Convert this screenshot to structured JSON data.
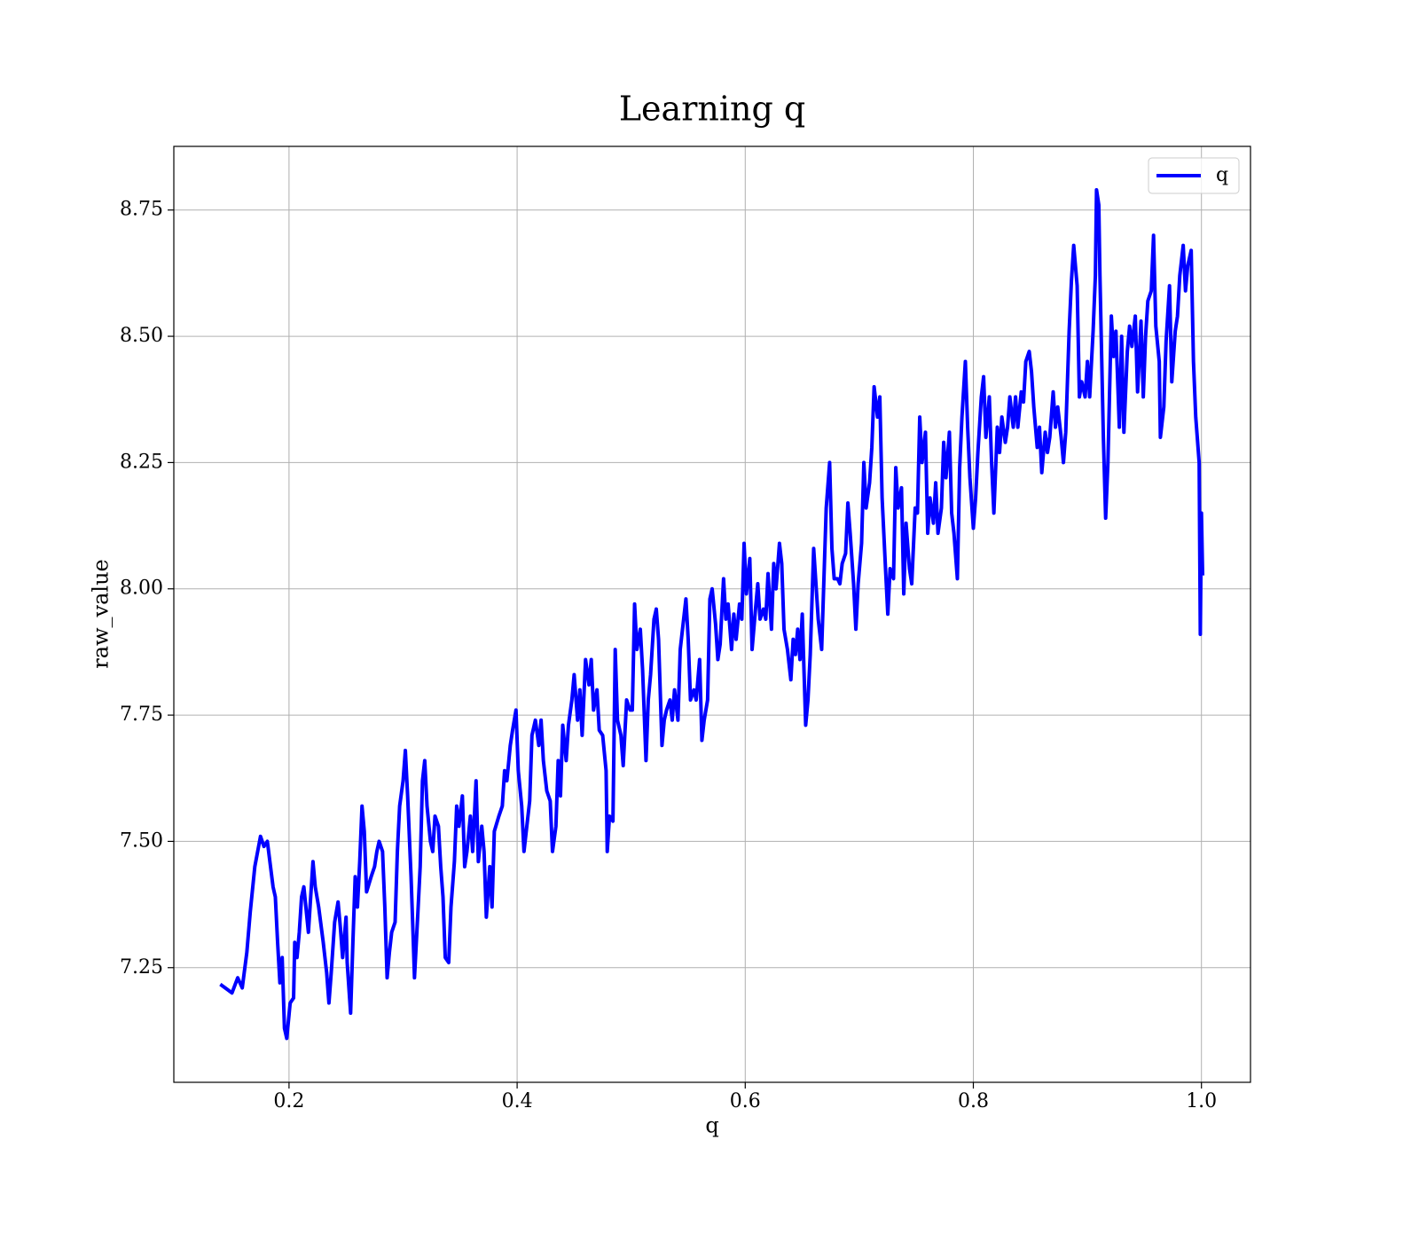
{
  "chart_data": {
    "type": "line",
    "title": "Learning q",
    "xlabel": "q",
    "ylabel": "raw_value",
    "xlim": [
      0.099,
      1.043
    ],
    "ylim": [
      7.023,
      8.876
    ],
    "xticks": [
      0.2,
      0.4,
      0.6,
      0.8,
      {
        "value": 1,
        "label": "1.0"
      }
    ],
    "yticks": [
      7.25,
      {
        "value": 7.5,
        "label": "7.50"
      },
      7.75,
      {
        "value": 8,
        "label": "8.00"
      },
      8.25,
      {
        "value": 8.5,
        "label": "8.50"
      },
      8.75
    ],
    "grid": true,
    "legend": "upper right",
    "series": [
      {
        "name": "q",
        "color": "#0000ff",
        "x": [
          0.141,
          0.15,
          0.155,
          0.159,
          0.163,
          0.166,
          0.17,
          0.175,
          0.178,
          0.181,
          0.186,
          0.188,
          0.19,
          0.192,
          0.194,
          0.196,
          0.198,
          0.201,
          0.204,
          0.205,
          0.207,
          0.209,
          0.211,
          0.213,
          0.217,
          0.219,
          0.221,
          0.223,
          0.226,
          0.23,
          0.231,
          0.233,
          0.235,
          0.237,
          0.24,
          0.243,
          0.245,
          0.247,
          0.25,
          0.251,
          0.254,
          0.256,
          0.258,
          0.26,
          0.262,
          0.264,
          0.266,
          0.268,
          0.272,
          0.275,
          0.277,
          0.279,
          0.282,
          0.284,
          0.286,
          0.288,
          0.29,
          0.293,
          0.295,
          0.297,
          0.3,
          0.302,
          0.304,
          0.307,
          0.309,
          0.31,
          0.313,
          0.315,
          0.317,
          0.319,
          0.321,
          0.324,
          0.326,
          0.328,
          0.331,
          0.333,
          0.335,
          0.337,
          0.34,
          0.342,
          0.345,
          0.347,
          0.349,
          0.352,
          0.354,
          0.356,
          0.359,
          0.361,
          0.364,
          0.366,
          0.369,
          0.371,
          0.373,
          0.376,
          0.378,
          0.38,
          0.384,
          0.387,
          0.389,
          0.391,
          0.394,
          0.396,
          0.399,
          0.401,
          0.404,
          0.406,
          0.408,
          0.411,
          0.413,
          0.416,
          0.419,
          0.421,
          0.423,
          0.426,
          0.429,
          0.431,
          0.434,
          0.436,
          0.438,
          0.44,
          0.443,
          0.445,
          0.448,
          0.45,
          0.453,
          0.455,
          0.457,
          0.46,
          0.463,
          0.465,
          0.467,
          0.47,
          0.472,
          0.475,
          0.478,
          0.479,
          0.481,
          0.484,
          0.486,
          0.488,
          0.491,
          0.493,
          0.496,
          0.499,
          0.501,
          0.503,
          0.505,
          0.508,
          0.51,
          0.513,
          0.515,
          0.517,
          0.52,
          0.522,
          0.524,
          0.527,
          0.529,
          0.531,
          0.534,
          0.536,
          0.538,
          0.541,
          0.543,
          0.545,
          0.548,
          0.55,
          0.552,
          0.555,
          0.557,
          0.56,
          0.562,
          0.564,
          0.567,
          0.569,
          0.571,
          0.574,
          0.576,
          0.578,
          0.581,
          0.583,
          0.585,
          0.588,
          0.59,
          0.592,
          0.595,
          0.597,
          0.599,
          0.601,
          0.604,
          0.606,
          0.609,
          0.611,
          0.613,
          0.616,
          0.618,
          0.62,
          0.623,
          0.625,
          0.627,
          0.63,
          0.632,
          0.634,
          0.637,
          0.64,
          0.642,
          0.644,
          0.646,
          0.648,
          0.65,
          0.653,
          0.655,
          0.657,
          0.66,
          0.662,
          0.664,
          0.667,
          0.669,
          0.671,
          0.674,
          0.676,
          0.678,
          0.681,
          0.683,
          0.685,
          0.688,
          0.69,
          0.692,
          0.695,
          0.697,
          0.699,
          0.702,
          0.704,
          0.706,
          0.709,
          0.711,
          0.713,
          0.716,
          0.718,
          0.72,
          0.723,
          0.725,
          0.727,
          0.73,
          0.732,
          0.734,
          0.737,
          0.739,
          0.741,
          0.744,
          0.746,
          0.749,
          0.751,
          0.753,
          0.755,
          0.758,
          0.76,
          0.762,
          0.765,
          0.767,
          0.769,
          0.772,
          0.774,
          0.776,
          0.779,
          0.781,
          0.783,
          0.786,
          0.788,
          0.79,
          0.793,
          0.795,
          0.797,
          0.8,
          0.802,
          0.804,
          0.807,
          0.809,
          0.811,
          0.814,
          0.816,
          0.818,
          0.821,
          0.823,
          0.825,
          0.828,
          0.83,
          0.832,
          0.835,
          0.837,
          0.839,
          0.842,
          0.844,
          0.846,
          0.849,
          0.851,
          0.853,
          0.856,
          0.858,
          0.86,
          0.863,
          0.865,
          0.867,
          0.87,
          0.872,
          0.874,
          0.877,
          0.879,
          0.881,
          0.884,
          0.886,
          0.888,
          0.891,
          0.893,
          0.895,
          0.898,
          0.9,
          0.902,
          0.905,
          0.907,
          0.908,
          0.91,
          0.911,
          0.914,
          0.916,
          0.918,
          0.921,
          0.923,
          0.925,
          0.928,
          0.93,
          0.932,
          0.935,
          0.937,
          0.939,
          0.942,
          0.944,
          0.947,
          0.949,
          0.951,
          0.953,
          0.956,
          0.958,
          0.96,
          0.963,
          0.964,
          0.967,
          0.969,
          0.972,
          0.974,
          0.977,
          0.979,
          0.981,
          0.984,
          0.986,
          0.988,
          0.991,
          0.993,
          0.995,
          0.998,
          0.999,
          1.0,
          1.001
        ],
        "values": [
          7.215,
          7.2,
          7.23,
          7.21,
          7.28,
          7.36,
          7.45,
          7.51,
          7.49,
          7.5,
          7.41,
          7.39,
          7.3,
          7.22,
          7.27,
          7.13,
          7.11,
          7.18,
          7.19,
          7.3,
          7.27,
          7.32,
          7.39,
          7.41,
          7.32,
          7.39,
          7.46,
          7.41,
          7.37,
          7.3,
          7.28,
          7.24,
          7.18,
          7.24,
          7.34,
          7.38,
          7.33,
          7.27,
          7.35,
          7.26,
          7.16,
          7.3,
          7.43,
          7.37,
          7.46,
          7.57,
          7.52,
          7.4,
          7.43,
          7.45,
          7.48,
          7.5,
          7.48,
          7.37,
          7.23,
          7.28,
          7.32,
          7.34,
          7.48,
          7.57,
          7.62,
          7.68,
          7.59,
          7.43,
          7.3,
          7.23,
          7.36,
          7.45,
          7.62,
          7.66,
          7.57,
          7.5,
          7.48,
          7.55,
          7.53,
          7.45,
          7.39,
          7.27,
          7.26,
          7.37,
          7.46,
          7.57,
          7.53,
          7.59,
          7.45,
          7.48,
          7.55,
          7.48,
          7.62,
          7.46,
          7.53,
          7.48,
          7.35,
          7.45,
          7.37,
          7.52,
          7.55,
          7.57,
          7.64,
          7.62,
          7.69,
          7.72,
          7.76,
          7.64,
          7.57,
          7.48,
          7.52,
          7.58,
          7.71,
          7.74,
          7.69,
          7.74,
          7.66,
          7.6,
          7.58,
          7.48,
          7.53,
          7.66,
          7.59,
          7.73,
          7.66,
          7.73,
          7.78,
          7.83,
          7.74,
          7.8,
          7.71,
          7.86,
          7.81,
          7.86,
          7.76,
          7.8,
          7.72,
          7.71,
          7.64,
          7.48,
          7.55,
          7.54,
          7.88,
          7.74,
          7.71,
          7.65,
          7.78,
          7.76,
          7.76,
          7.97,
          7.88,
          7.92,
          7.84,
          7.66,
          7.78,
          7.83,
          7.94,
          7.96,
          7.9,
          7.69,
          7.74,
          7.76,
          7.78,
          7.74,
          7.8,
          7.74,
          7.88,
          7.92,
          7.98,
          7.9,
          7.78,
          7.8,
          7.78,
          7.86,
          7.7,
          7.74,
          7.78,
          7.98,
          8.0,
          7.93,
          7.86,
          7.89,
          8.02,
          7.94,
          7.97,
          7.88,
          7.95,
          7.9,
          7.97,
          7.94,
          8.09,
          7.99,
          8.06,
          7.88,
          7.96,
          8.01,
          7.94,
          7.96,
          7.94,
          8.03,
          7.92,
          8.05,
          8.0,
          8.09,
          8.05,
          7.92,
          7.88,
          7.82,
          7.9,
          7.87,
          7.92,
          7.86,
          7.95,
          7.73,
          7.78,
          7.87,
          8.08,
          8.01,
          7.94,
          7.88,
          8.02,
          8.16,
          8.25,
          8.08,
          8.02,
          8.02,
          8.01,
          8.05,
          8.07,
          8.17,
          8.11,
          8.01,
          7.92,
          8.01,
          8.09,
          8.25,
          8.16,
          8.21,
          8.28,
          8.4,
          8.34,
          8.38,
          8.18,
          8.04,
          7.95,
          8.04,
          8.02,
          8.24,
          8.16,
          8.2,
          7.99,
          8.13,
          8.04,
          8.01,
          8.16,
          8.15,
          8.34,
          8.25,
          8.31,
          8.11,
          8.18,
          8.13,
          8.21,
          8.11,
          8.16,
          8.29,
          8.22,
          8.31,
          8.15,
          8.11,
          8.02,
          8.24,
          8.34,
          8.45,
          8.32,
          8.22,
          8.12,
          8.18,
          8.27,
          8.38,
          8.42,
          8.3,
          8.38,
          8.25,
          8.15,
          8.32,
          8.27,
          8.34,
          8.29,
          8.32,
          8.38,
          8.32,
          8.38,
          8.32,
          8.39,
          8.37,
          8.45,
          8.47,
          8.43,
          8.36,
          8.28,
          8.32,
          8.23,
          8.31,
          8.27,
          8.3,
          8.39,
          8.32,
          8.36,
          8.3,
          8.25,
          8.31,
          8.51,
          8.61,
          8.68,
          8.6,
          8.38,
          8.41,
          8.38,
          8.45,
          8.38,
          8.51,
          8.62,
          8.79,
          8.76,
          8.62,
          8.3,
          8.14,
          8.25,
          8.54,
          8.46,
          8.51,
          8.32,
          8.5,
          8.31,
          8.47,
          8.52,
          8.48,
          8.54,
          8.39,
          8.53,
          8.38,
          8.5,
          8.57,
          8.59,
          8.7,
          8.52,
          8.45,
          8.3,
          8.36,
          8.49,
          8.6,
          8.41,
          8.51,
          8.54,
          8.62,
          8.68,
          8.59,
          8.64,
          8.67,
          8.45,
          8.34,
          8.25,
          7.91,
          8.15,
          8.03
        ]
      }
    ]
  }
}
